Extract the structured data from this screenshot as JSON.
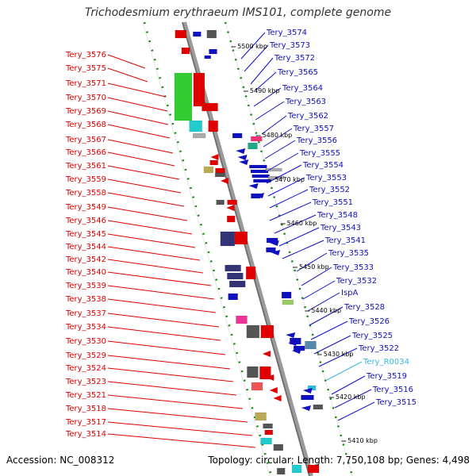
{
  "title": "Trichodesmium erythraeum IMS101, complete genome",
  "accession": "Accession: NC_008312",
  "topology": "Topology: circular; Length: 7,750,108 bp; Genes: 4,498",
  "colors": {
    "forward": "#e00000",
    "reverse": "#1010c0",
    "rna": "#33bbdd",
    "backbone": "#888888",
    "ticks": "#118811"
  },
  "scale_labels": [
    "5500 kbp",
    "5490 kbp",
    "5480 kbp",
    "5470 kbp",
    "5460 kbp",
    "5450 kbp",
    "5440 kbp",
    "5430 kbp",
    "5420 kbp",
    "5410 kbp"
  ],
  "left_genes": [
    "Tery_3576",
    "Tery_3575",
    "Tery_3571",
    "Tery_3570",
    "Tery_3569",
    "Tery_3568",
    "Tery_3567",
    "Tery_3566",
    "Tery_3561",
    "Tery_3559",
    "Tery_3558",
    "Tery_3549",
    "Tery_3546",
    "Tery_3545",
    "Tery_3544",
    "Tery_3542",
    "Tery_3540",
    "Tery_3539",
    "Tery_3538",
    "Tery_3537",
    "Tery_3534",
    "Tery_3530",
    "Tery_3529",
    "Tery_3524",
    "Tery_3523",
    "Tery_3521",
    "Tery_3518",
    "Tery_3517",
    "Tery_3514"
  ],
  "right_genes": [
    "Tery_3574",
    "Tery_3573",
    "Tery_3572",
    "Tery_3565",
    "Tery_3564",
    "Tery_3563",
    "Tery_3562",
    "Tery_3557",
    "Tery_3556",
    "Tery_3555",
    "Tery_3554",
    "Tery_3553",
    "Tery_3552",
    "Tery_3551",
    "Tery_3548",
    "Tery_3543",
    "Tery_3541",
    "Tery_3535",
    "Tery_3533",
    "Tery_3532",
    "IspA",
    "Tery_3528",
    "Tery_3526",
    "Tery_3525",
    "Tery_3522",
    "Tery_R0034",
    "Tery_3519",
    "Tery_3516",
    "Tery_3515"
  ],
  "right_rna_gene": "Tery_R0034"
}
